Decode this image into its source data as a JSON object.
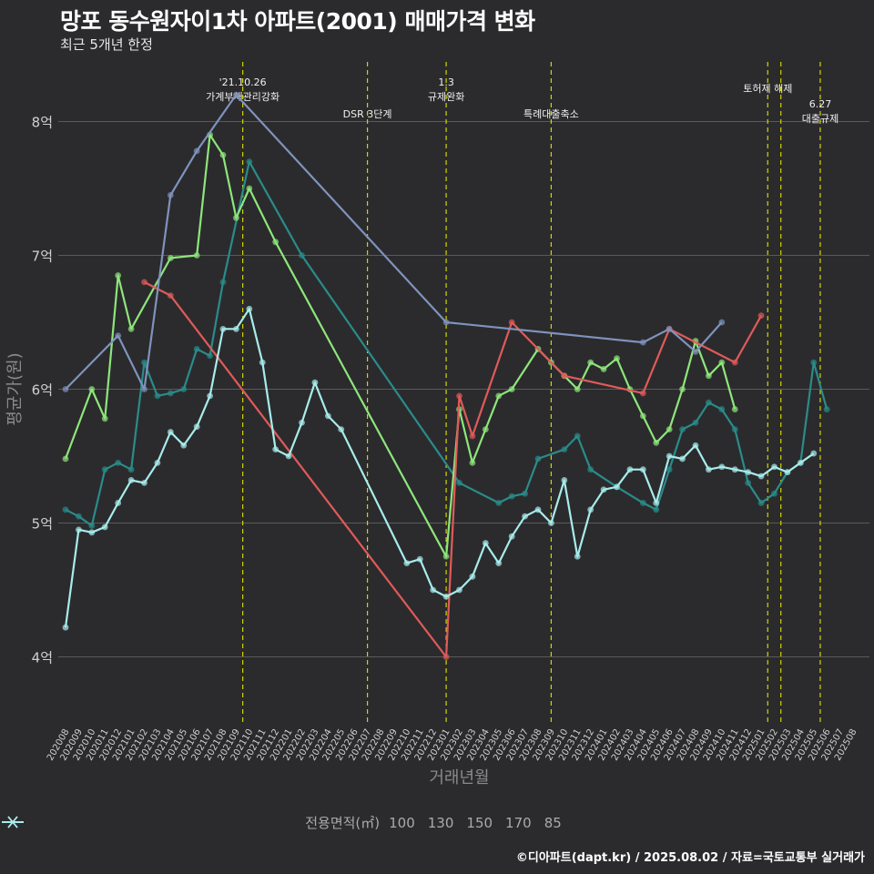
{
  "header": {
    "title": "망포 동수원자이1차 아파트(2001) 매매가격 변화",
    "subtitle": "최근 5개년 한정"
  },
  "caption": "©디아파트(dapt.kr) / 2025.08.02 / 자료=국토교통부 실거래가",
  "colors": {
    "background": "#2b2b2d",
    "grid": "#5a5a5a",
    "event_line": "#d4d400"
  },
  "chart_data": {
    "type": "line",
    "xlabel": "거래년월",
    "ylabel": "평균가(원)",
    "ylim": [
      3.5,
      8.5
    ],
    "x": [
      "202008",
      "202009",
      "202010",
      "202011",
      "202012",
      "202101",
      "202102",
      "202103",
      "202104",
      "202105",
      "202106",
      "202107",
      "202108",
      "202109",
      "202110",
      "202111",
      "202112",
      "202201",
      "202202",
      "202203",
      "202204",
      "202205",
      "202206",
      "202207",
      "202208",
      "202209",
      "202210",
      "202211",
      "202212",
      "202301",
      "202302",
      "202303",
      "202304",
      "202305",
      "202306",
      "202307",
      "202308",
      "202309",
      "202310",
      "202311",
      "202312",
      "202401",
      "202402",
      "202403",
      "202404",
      "202405",
      "202406",
      "202407",
      "202408",
      "202409",
      "202410",
      "202411",
      "202412",
      "202501",
      "202502",
      "202503",
      "202504",
      "202505",
      "202506",
      "202507",
      "202508"
    ],
    "yticks": [
      {
        "value": 4,
        "label": "4억"
      },
      {
        "value": 5,
        "label": "5억"
      },
      {
        "value": 6,
        "label": "6억"
      },
      {
        "value": 7,
        "label": "7억"
      },
      {
        "value": 8,
        "label": "8억"
      }
    ],
    "legend_title": "전용면적(㎡)",
    "series": [
      {
        "name": "100",
        "color": "#2a8c8a",
        "points": [
          [
            0,
            5.1
          ],
          [
            1,
            5.05
          ],
          [
            2,
            4.98
          ],
          [
            3,
            5.4
          ],
          [
            4,
            5.45
          ],
          [
            5,
            5.4
          ],
          [
            6,
            6.2
          ],
          [
            7,
            5.95
          ],
          [
            8,
            5.97
          ],
          [
            9,
            6.0
          ],
          [
            10,
            6.3
          ],
          [
            11,
            6.25
          ],
          [
            12,
            6.8
          ],
          [
            14,
            7.7
          ],
          [
            18,
            7.0
          ],
          [
            30,
            5.3
          ],
          [
            33,
            5.15
          ],
          [
            34,
            5.2
          ],
          [
            35,
            5.22
          ],
          [
            36,
            5.48
          ],
          [
            38,
            5.55
          ],
          [
            39,
            5.65
          ],
          [
            40,
            5.4
          ],
          [
            42,
            5.27
          ],
          [
            44,
            5.15
          ],
          [
            45,
            5.1
          ],
          [
            46,
            5.4
          ],
          [
            47,
            5.7
          ],
          [
            48,
            5.75
          ],
          [
            49,
            5.9
          ],
          [
            50,
            5.85
          ],
          [
            51,
            5.7
          ],
          [
            52,
            5.3
          ],
          [
            53,
            5.15
          ],
          [
            54,
            5.22
          ],
          [
            55,
            5.38
          ],
          [
            56,
            5.45
          ],
          [
            57,
            6.2
          ],
          [
            58,
            5.85
          ]
        ]
      },
      {
        "name": "130",
        "color": "#8ee67a",
        "points": [
          [
            0,
            5.48
          ],
          [
            2,
            6.0
          ],
          [
            3,
            5.78
          ],
          [
            4,
            6.85
          ],
          [
            5,
            6.45
          ],
          [
            8,
            6.98
          ],
          [
            10,
            7.0
          ],
          [
            11,
            7.9
          ],
          [
            12,
            7.75
          ],
          [
            13,
            7.28
          ],
          [
            14,
            7.5
          ],
          [
            16,
            7.1
          ],
          [
            29,
            4.75
          ],
          [
            30,
            5.85
          ],
          [
            31,
            5.45
          ],
          [
            32,
            5.7
          ],
          [
            33,
            5.95
          ],
          [
            34,
            6.0
          ],
          [
            36,
            6.3
          ],
          [
            37,
            6.2
          ],
          [
            38,
            6.1
          ],
          [
            39,
            6.0
          ],
          [
            40,
            6.2
          ],
          [
            41,
            6.15
          ],
          [
            42,
            6.23
          ],
          [
            43,
            6.0
          ],
          [
            44,
            5.8
          ],
          [
            45,
            5.6
          ],
          [
            46,
            5.7
          ],
          [
            47,
            6.0
          ],
          [
            48,
            6.36
          ],
          [
            49,
            6.1
          ],
          [
            50,
            6.2
          ],
          [
            51,
            5.85
          ]
        ]
      },
      {
        "name": "150",
        "color": "#e05a5a",
        "points": [
          [
            6,
            6.8
          ],
          [
            8,
            6.7
          ],
          [
            29,
            4.0
          ],
          [
            30,
            5.95
          ],
          [
            31,
            5.65
          ],
          [
            34,
            6.5
          ],
          [
            38,
            6.1
          ],
          [
            44,
            5.97
          ],
          [
            46,
            6.45
          ],
          [
            51,
            6.2
          ],
          [
            53,
            6.55
          ]
        ]
      },
      {
        "name": "170",
        "color": "#7f93bd",
        "points": [
          [
            0,
            6.0
          ],
          [
            4,
            6.4
          ],
          [
            6,
            6.0
          ],
          [
            8,
            7.45
          ],
          [
            10,
            7.78
          ],
          [
            13,
            8.2
          ],
          [
            29,
            6.5
          ],
          [
            44,
            6.35
          ],
          [
            46,
            6.45
          ],
          [
            48,
            6.28
          ],
          [
            50,
            6.5
          ]
        ]
      },
      {
        "name": "85",
        "color": "#a8ecec",
        "points": [
          [
            0,
            4.22
          ],
          [
            1,
            4.95
          ],
          [
            2,
            4.93
          ],
          [
            3,
            4.97
          ],
          [
            4,
            5.15
          ],
          [
            5,
            5.32
          ],
          [
            6,
            5.3
          ],
          [
            7,
            5.45
          ],
          [
            8,
            5.68
          ],
          [
            9,
            5.58
          ],
          [
            10,
            5.72
          ],
          [
            11,
            5.95
          ],
          [
            12,
            6.45
          ],
          [
            13,
            6.45
          ],
          [
            14,
            6.6
          ],
          [
            15,
            6.2
          ],
          [
            16,
            5.55
          ],
          [
            17,
            5.5
          ],
          [
            18,
            5.75
          ],
          [
            19,
            6.05
          ],
          [
            20,
            5.8
          ],
          [
            21,
            5.7
          ],
          [
            26,
            4.7
          ],
          [
            27,
            4.73
          ],
          [
            28,
            4.5
          ],
          [
            29,
            4.45
          ],
          [
            30,
            4.5
          ],
          [
            31,
            4.6
          ],
          [
            32,
            4.85
          ],
          [
            33,
            4.7
          ],
          [
            34,
            4.9
          ],
          [
            35,
            5.05
          ],
          [
            36,
            5.1
          ],
          [
            37,
            5.0
          ],
          [
            38,
            5.32
          ],
          [
            39,
            4.75
          ],
          [
            40,
            5.1
          ],
          [
            41,
            5.25
          ],
          [
            42,
            5.27
          ],
          [
            43,
            5.4
          ],
          [
            44,
            5.4
          ],
          [
            45,
            5.15
          ],
          [
            46,
            5.5
          ],
          [
            47,
            5.48
          ],
          [
            48,
            5.58
          ],
          [
            49,
            5.4
          ],
          [
            50,
            5.42
          ],
          [
            51,
            5.4
          ],
          [
            52,
            5.38
          ],
          [
            53,
            5.35
          ],
          [
            54,
            5.42
          ],
          [
            55,
            5.38
          ],
          [
            56,
            5.45
          ],
          [
            57,
            5.52
          ]
        ]
      }
    ],
    "events": [
      {
        "x": 13.5,
        "label": "'21.10.26\n가계부채관리강화"
      },
      {
        "x": 23,
        "label": "DSR 3단계"
      },
      {
        "x": 29,
        "label": "1.3\n규제완화"
      },
      {
        "x": 37,
        "label": "특례대출축소"
      },
      {
        "x": 53.5,
        "label": "토허제 해제"
      },
      {
        "x": 54.5,
        "label": ""
      },
      {
        "x": 57.5,
        "label": "6.27\n대출규제"
      }
    ]
  }
}
